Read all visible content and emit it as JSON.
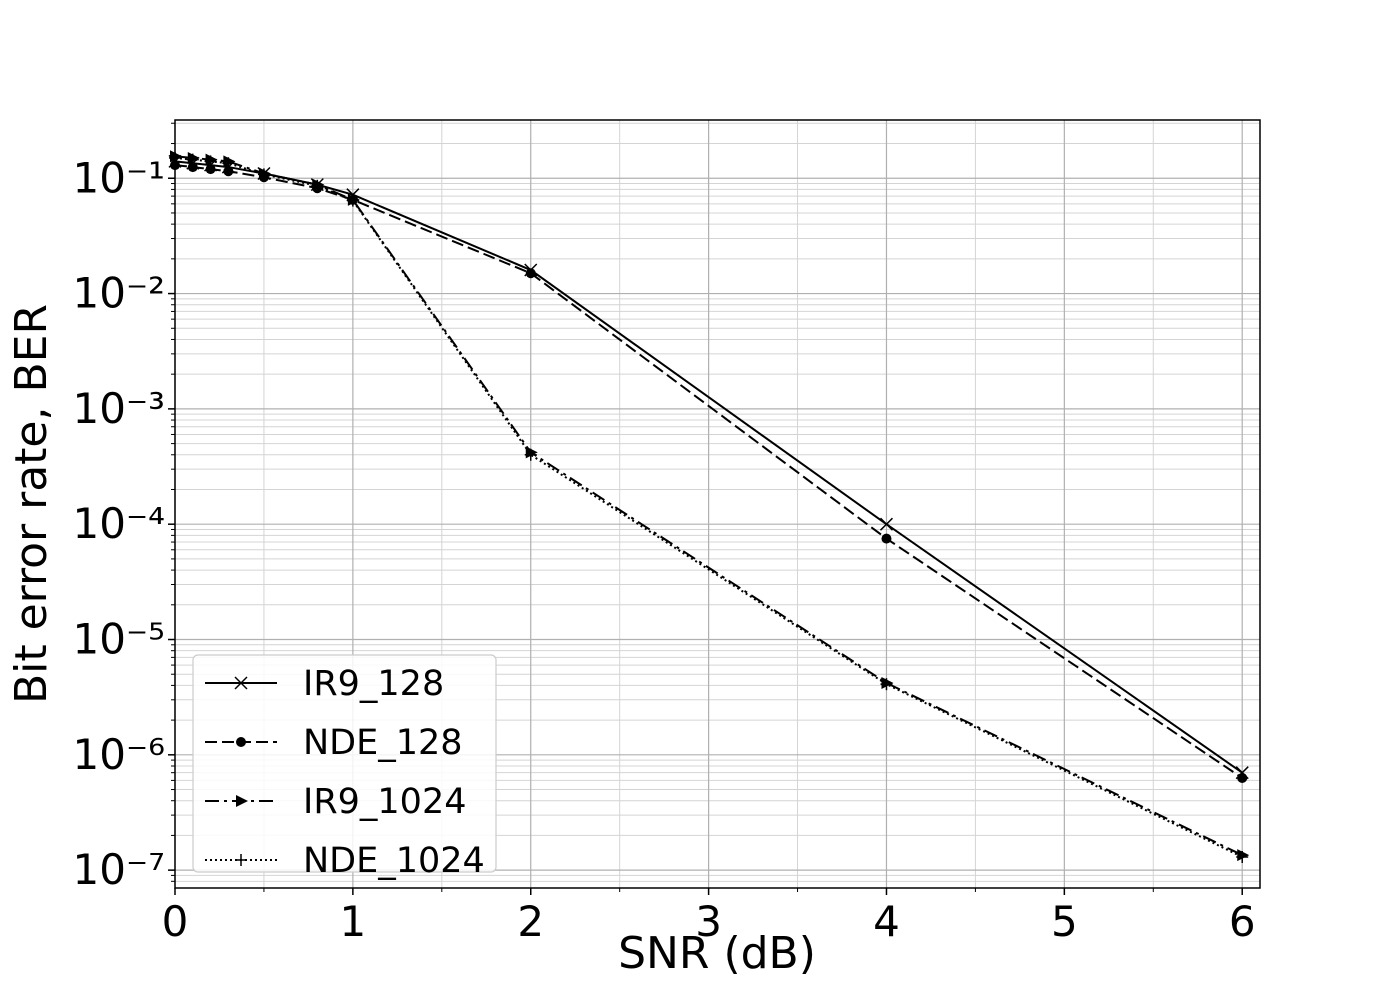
{
  "chart_data": {
    "type": "line",
    "x_label": "SNR (dB)",
    "y_label": "Bit error rate, BER",
    "xlim": [
      0,
      6.1
    ],
    "xticks": [
      0,
      1,
      2,
      3,
      4,
      5,
      6
    ],
    "xminorticks": [
      0.5,
      1.5,
      2.5,
      3.5,
      4.5,
      5.5
    ],
    "ylim": [
      7e-08,
      0.32
    ],
    "log_y": true,
    "grid": true,
    "yticks": [
      {
        "value": 1e-07,
        "label": "10⁻⁷"
      },
      {
        "value": 1e-06,
        "label": "10⁻⁶"
      },
      {
        "value": 1e-05,
        "label": "10⁻⁵"
      },
      {
        "value": 0.0001,
        "label": "10⁻⁴"
      },
      {
        "value": 0.001,
        "label": "10⁻³"
      },
      {
        "value": 0.01,
        "label": "10⁻²"
      },
      {
        "value": 0.1,
        "label": "10⁻¹"
      }
    ],
    "yminorticks": [
      8e-08,
      9e-08,
      2e-07,
      3e-07,
      4e-07,
      5e-07,
      6e-07,
      7e-07,
      8e-07,
      9e-07,
      2e-06,
      3e-06,
      4e-06,
      5e-06,
      6e-06,
      7e-06,
      8e-06,
      9e-06,
      2e-05,
      3e-05,
      4e-05,
      5e-05,
      6e-05,
      7e-05,
      8e-05,
      9e-05,
      0.0002,
      0.0003,
      0.0004,
      0.0005,
      0.0006,
      0.0007,
      0.0008,
      0.0009,
      0.002,
      0.003,
      0.004,
      0.005,
      0.006,
      0.007,
      0.008,
      0.009,
      0.02,
      0.03,
      0.04,
      0.05,
      0.06,
      0.07,
      0.08,
      0.09,
      0.2,
      0.3
    ],
    "legend_position": "lower left",
    "series": [
      {
        "name": "IR9_128",
        "color": "#000000",
        "dash": "solid",
        "marker": "x",
        "x": [
          0,
          0.1,
          0.2,
          0.3,
          0.5,
          0.8,
          1,
          2,
          4,
          6
        ],
        "values": [
          0.14,
          0.135,
          0.13,
          0.125,
          0.11,
          0.088,
          0.072,
          0.016,
          0.0001,
          7e-07
        ]
      },
      {
        "name": "NDE_128",
        "color": "#000000",
        "dash": "dashed",
        "marker": "circle",
        "x": [
          0,
          0.1,
          0.2,
          0.3,
          0.5,
          0.8,
          1,
          2,
          4,
          6
        ],
        "values": [
          0.13,
          0.125,
          0.12,
          0.115,
          0.102,
          0.082,
          0.065,
          0.015,
          7.5e-05,
          6.3e-07
        ]
      },
      {
        "name": "IR9_1024",
        "color": "#000000",
        "dash": "dashdot",
        "marker": "triangle-right",
        "x": [
          0,
          0.1,
          0.2,
          0.3,
          0.5,
          0.8,
          1,
          2,
          4,
          6
        ],
        "values": [
          0.155,
          0.15,
          0.145,
          0.14,
          0.11,
          0.088,
          0.065,
          0.00042,
          4.2e-06,
          1.35e-07
        ]
      },
      {
        "name": "NDE_1024",
        "color": "#000000",
        "dash": "dotted",
        "marker": "plus",
        "x": [
          0,
          0.1,
          0.2,
          0.3,
          0.5,
          0.8,
          1,
          2,
          4,
          6
        ],
        "values": [
          0.15,
          0.145,
          0.14,
          0.135,
          0.108,
          0.086,
          0.064,
          0.0004,
          4.1e-06,
          1.3e-07
        ]
      }
    ]
  }
}
